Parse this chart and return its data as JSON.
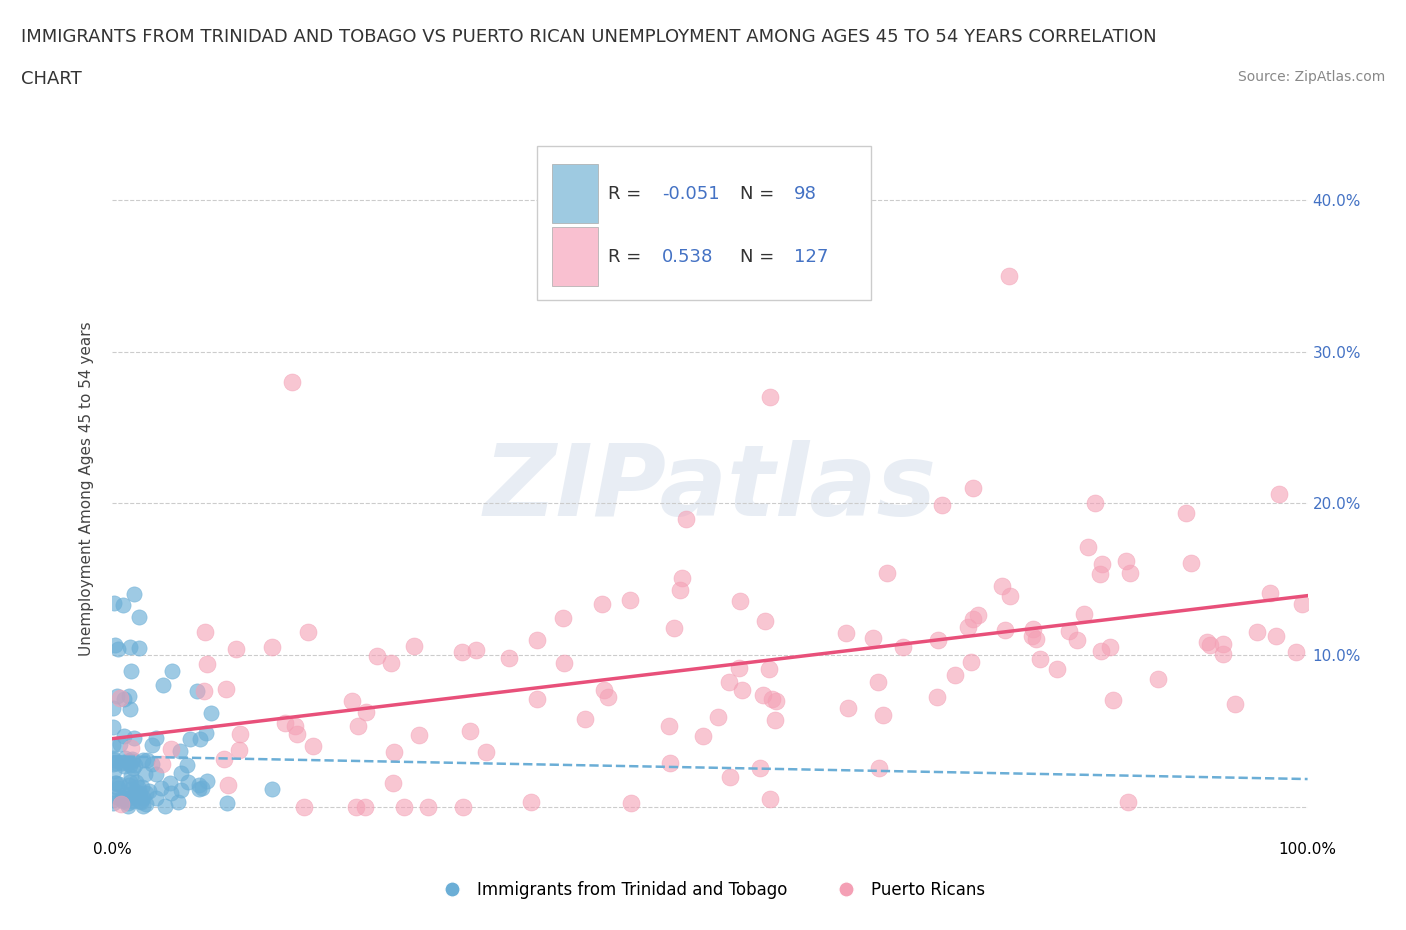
{
  "title_line1": "IMMIGRANTS FROM TRINIDAD AND TOBAGO VS PUERTO RICAN UNEMPLOYMENT AMONG AGES 45 TO 54 YEARS CORRELATION",
  "title_line2": "CHART",
  "source_text": "Source: ZipAtlas.com",
  "ylabel": "Unemployment Among Ages 45 to 54 years",
  "background_color": "#ffffff",
  "watermark_text": "ZIPatlas",
  "series": [
    {
      "name": "Immigrants from Trinidad and Tobago",
      "R": -0.051,
      "N": 98,
      "color_scatter": "#6baed6",
      "color_line": "#6baed6",
      "color_legend": "#9ecae1",
      "line_style": "dashed"
    },
    {
      "name": "Puerto Ricans",
      "R": 0.538,
      "N": 127,
      "color_scatter": "#f4a0b5",
      "color_line": "#e8507a",
      "color_legend": "#f9c0d0",
      "line_style": "solid"
    }
  ],
  "xlim": [
    0.0,
    1.0
  ],
  "ylim": [
    -0.02,
    0.44
  ],
  "xticks": [
    0.0,
    0.1,
    0.2,
    0.3,
    0.4,
    0.5,
    0.6,
    0.7,
    0.8,
    0.9,
    1.0
  ],
  "yticks": [
    0.0,
    0.1,
    0.2,
    0.3,
    0.4
  ],
  "grid_color": "#cccccc",
  "title_fontsize": 13,
  "axis_label_fontsize": 11,
  "tick_fontsize": 11,
  "legend_fontsize": 13,
  "source_fontsize": 10,
  "right_ytick_color": "#4472c4"
}
